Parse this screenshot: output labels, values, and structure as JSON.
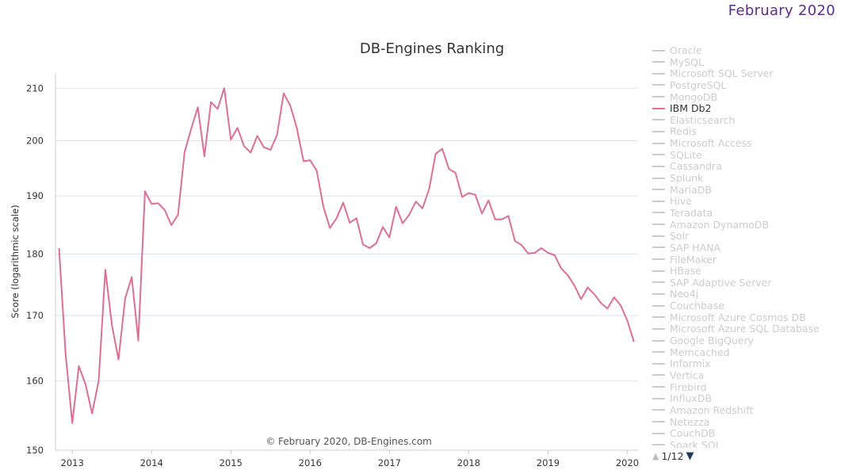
{
  "corner_date": "February 2020",
  "chart_data": {
    "type": "line",
    "title": "DB-Engines Ranking",
    "ylabel": "Score (logarithmic scale)",
    "credit": "© February 2020, DB-Engines.com",
    "y_scale": "log",
    "ylim": [
      150,
      213
    ],
    "y_ticks": [
      150,
      160,
      170,
      180,
      190,
      200,
      210
    ],
    "x_ticks": [
      "2013",
      "2014",
      "2015",
      "2016",
      "2017",
      "2018",
      "2019",
      "2020"
    ],
    "xlim": [
      "2012-10-15",
      "2020-02-20"
    ],
    "grid": true,
    "series": [
      {
        "name": "IBM Db2",
        "color": "#dc6f97",
        "points": [
          [
            "2012-11",
            181.0
          ],
          [
            "2012-12",
            164.0
          ],
          [
            "2013-01",
            153.8
          ],
          [
            "2013-02",
            162.2
          ],
          [
            "2013-03",
            159.5
          ],
          [
            "2013-04",
            155.2
          ],
          [
            "2013-05",
            160.0
          ],
          [
            "2013-06",
            177.4
          ],
          [
            "2013-07",
            168.5
          ],
          [
            "2013-08",
            163.2
          ],
          [
            "2013-09",
            172.7
          ],
          [
            "2013-10",
            176.2
          ],
          [
            "2013-11",
            166.1
          ],
          [
            "2013-12",
            190.8
          ],
          [
            "2014-01",
            188.6
          ],
          [
            "2014-02",
            188.7
          ],
          [
            "2014-03",
            187.5
          ],
          [
            "2014-04",
            184.9
          ],
          [
            "2014-05",
            186.7
          ],
          [
            "2014-06",
            197.9
          ],
          [
            "2014-07",
            202.2
          ],
          [
            "2014-08",
            206.3
          ],
          [
            "2014-09",
            197.1
          ],
          [
            "2014-10",
            207.3
          ],
          [
            "2014-11",
            206.0
          ],
          [
            "2014-12",
            210.0
          ],
          [
            "2015-01",
            200.2
          ],
          [
            "2015-02",
            202.4
          ],
          [
            "2015-03",
            199.0
          ],
          [
            "2015-04",
            197.8
          ],
          [
            "2015-05",
            200.9
          ],
          [
            "2015-06",
            198.8
          ],
          [
            "2015-07",
            198.3
          ],
          [
            "2015-08",
            201.1
          ],
          [
            "2015-09",
            209.0
          ],
          [
            "2015-10",
            206.6
          ],
          [
            "2015-11",
            202.3
          ],
          [
            "2015-12",
            196.2
          ],
          [
            "2016-01",
            196.4
          ],
          [
            "2016-02",
            194.5
          ],
          [
            "2016-03",
            188.1
          ],
          [
            "2016-04",
            184.4
          ],
          [
            "2016-05",
            186.1
          ],
          [
            "2016-06",
            188.8
          ],
          [
            "2016-07",
            185.3
          ],
          [
            "2016-08",
            186.1
          ],
          [
            "2016-09",
            181.6
          ],
          [
            "2016-10",
            181.0
          ],
          [
            "2016-11",
            181.8
          ],
          [
            "2016-12",
            184.6
          ],
          [
            "2017-01",
            182.8
          ],
          [
            "2017-02",
            188.1
          ],
          [
            "2017-03",
            185.2
          ],
          [
            "2017-04",
            186.7
          ],
          [
            "2017-05",
            189.0
          ],
          [
            "2017-06",
            187.8
          ],
          [
            "2017-07",
            191.2
          ],
          [
            "2017-08",
            197.6
          ],
          [
            "2017-09",
            198.5
          ],
          [
            "2017-10",
            194.8
          ],
          [
            "2017-11",
            194.1
          ],
          [
            "2017-12",
            189.8
          ],
          [
            "2018-01",
            190.5
          ],
          [
            "2018-02",
            190.2
          ],
          [
            "2018-03",
            186.9
          ],
          [
            "2018-04",
            189.2
          ],
          [
            "2018-05",
            185.9
          ],
          [
            "2018-06",
            185.9
          ],
          [
            "2018-07",
            186.5
          ],
          [
            "2018-08",
            182.2
          ],
          [
            "2018-09",
            181.5
          ],
          [
            "2018-10",
            180.1
          ],
          [
            "2018-11",
            180.2
          ],
          [
            "2018-12",
            181.0
          ],
          [
            "2019-01",
            180.2
          ],
          [
            "2019-02",
            179.8
          ],
          [
            "2019-03",
            177.6
          ],
          [
            "2019-04",
            176.5
          ],
          [
            "2019-05",
            174.8
          ],
          [
            "2019-06",
            172.6
          ],
          [
            "2019-07",
            174.5
          ],
          [
            "2019-08",
            173.4
          ],
          [
            "2019-09",
            172.0
          ],
          [
            "2019-10",
            171.1
          ],
          [
            "2019-11",
            172.9
          ],
          [
            "2019-12",
            171.6
          ],
          [
            "2020-01",
            169.2
          ],
          [
            "2020-02",
            165.9
          ]
        ]
      }
    ]
  },
  "legend": {
    "items": [
      "Oracle",
      "MySQL",
      "Microsoft SQL Server",
      "PostgreSQL",
      "MongoDB",
      "IBM Db2",
      "Elasticsearch",
      "Redis",
      "Microsoft Access",
      "SQLite",
      "Cassandra",
      "Splunk",
      "MariaDB",
      "Hive",
      "Teradata",
      "Amazon DynamoDB",
      "Solr",
      "SAP HANA",
      "FileMaker",
      "HBase",
      "SAP Adaptive Server",
      "Neo4j",
      "Couchbase",
      "Microsoft Azure Cosmos DB",
      "Microsoft Azure SQL Database",
      "Google BigQuery",
      "Memcached",
      "Informix",
      "Vertica",
      "Firebird",
      "InfluxDB",
      "Amazon Redshift",
      "Netezza",
      "CouchDB",
      "Spark SQL"
    ],
    "active": "IBM Db2",
    "page": "1/12",
    "up_icon": "triangle-up-icon",
    "down_icon": "triangle-down-icon"
  }
}
